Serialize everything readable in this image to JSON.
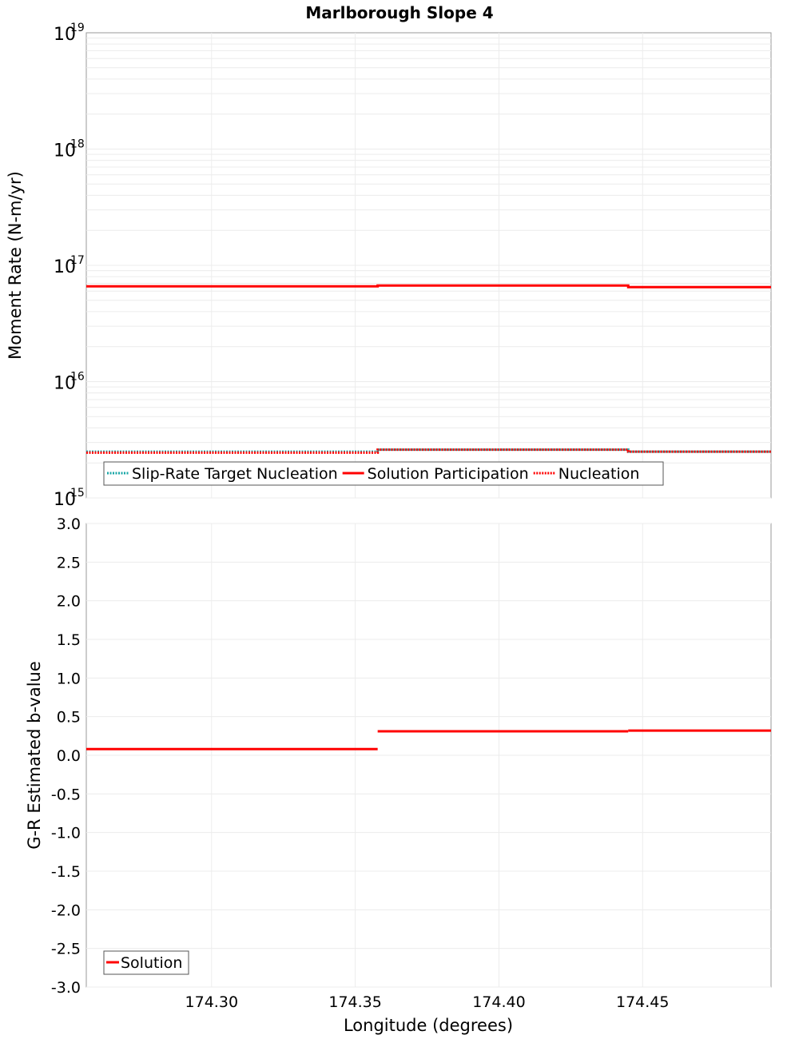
{
  "chart_data": [
    {
      "type": "line",
      "title": "Marlborough Slope 4",
      "xlabel": "Longitude (degrees)",
      "ylabel": "Moment Rate (N-m/yr)",
      "yscale": "log",
      "xlim": [
        174.2564,
        174.4947
      ],
      "ylim": [
        1000000000000000.0,
        1e+19
      ],
      "ytick_exponents": [
        15,
        16,
        17,
        18,
        19
      ],
      "ytick_base": "10",
      "grid": true,
      "legend_position": "bottom-left",
      "series": [
        {
          "name": "Slip-Rate Target Nucleation",
          "color": "#1aa7a7",
          "style": "dotted",
          "x": [
            174.2564,
            174.3578,
            174.3578,
            174.445,
            174.445,
            174.4947
          ],
          "y": [
            2500000000000000.0,
            2500000000000000.0,
            2600000000000000.0,
            2600000000000000.0,
            2500000000000000.0,
            2500000000000000.0
          ]
        },
        {
          "name": "Solution Participation",
          "color": "#ff0000",
          "style": "solid",
          "x": [
            174.2564,
            174.3578,
            174.3578,
            174.445,
            174.445,
            174.4947
          ],
          "y": [
            6.6e+16,
            6.6e+16,
            6.7e+16,
            6.7e+16,
            6.5e+16,
            6.5e+16
          ]
        },
        {
          "name": "Nucleation",
          "color": "#ff0000",
          "style": "dotted",
          "x": [
            174.2564,
            174.3578,
            174.3578,
            174.445,
            174.445,
            174.4947
          ],
          "y": [
            2450000000000000.0,
            2450000000000000.0,
            2600000000000000.0,
            2600000000000000.0,
            2500000000000000.0,
            2500000000000000.0
          ]
        }
      ]
    },
    {
      "type": "line",
      "xlabel": "Longitude (degrees)",
      "ylabel": "G-R Estimated b-value",
      "xlim": [
        174.2564,
        174.4947
      ],
      "ylim": [
        -3.0,
        3.0
      ],
      "yticks": [
        "3.0",
        "2.5",
        "2.0",
        "1.5",
        "1.0",
        "0.5",
        "0.0",
        "-0.5",
        "-1.0",
        "-1.5",
        "-2.0",
        "-2.5",
        "-3.0"
      ],
      "xticks": [
        "174.30",
        "174.35",
        "174.40",
        "174.45"
      ],
      "grid": true,
      "legend_position": "bottom-left",
      "series": [
        {
          "name": "Solution",
          "color": "#ff0000",
          "style": "solid",
          "segments": [
            {
              "x": [
                174.2564,
                174.3578
              ],
              "y": 0.08
            },
            {
              "x": [
                174.3578,
                174.445
              ],
              "y": 0.31
            },
            {
              "x": [
                174.445,
                174.4947
              ],
              "y": 0.32
            }
          ]
        }
      ]
    }
  ]
}
